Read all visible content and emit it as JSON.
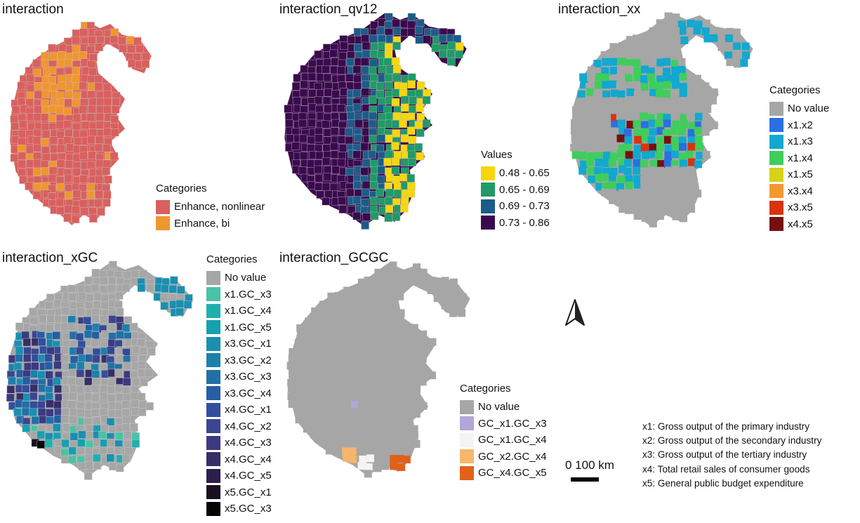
{
  "panels": [
    {
      "id": "interaction",
      "title": "interaction",
      "legend_title": "Categories",
      "legend": [
        {
          "label": "Enhance, nonlinear",
          "color": "#d9605e"
        },
        {
          "label": "Enhance, bi",
          "color": "#f0962e"
        }
      ]
    },
    {
      "id": "interaction_qv12",
      "title": "interaction_qv12",
      "legend_title": "Values",
      "legend": [
        {
          "label": "0.48 - 0.65",
          "color": "#f6d60f"
        },
        {
          "label": "0.65 - 0.69",
          "color": "#1f9a68"
        },
        {
          "label": "0.69 - 0.73",
          "color": "#1c5c8a"
        },
        {
          "label": "0.73 - 0.86",
          "color": "#3a0a4e"
        }
      ]
    },
    {
      "id": "interaction_xx",
      "title": "interaction_xx",
      "legend_title": "Categories",
      "legend": [
        {
          "label": "No value",
          "color": "#a6a6a6"
        },
        {
          "label": "x1.x2",
          "color": "#2b6fe0"
        },
        {
          "label": "x1.x3",
          "color": "#12a8cf"
        },
        {
          "label": "x1.x4",
          "color": "#3fcd5c"
        },
        {
          "label": "x1.x5",
          "color": "#d7d118"
        },
        {
          "label": "x3.x4",
          "color": "#f2992f"
        },
        {
          "label": "x3.x5",
          "color": "#d9330d"
        },
        {
          "label": "x4.x5",
          "color": "#770f0f"
        }
      ]
    },
    {
      "id": "interaction_xGC",
      "title": "interaction_xGC",
      "legend_title": "Categories",
      "legend": [
        {
          "label": "No value",
          "color": "#a6a6a6"
        },
        {
          "label": "x1.GC_x3",
          "color": "#48c3a5"
        },
        {
          "label": "x1.GC_x4",
          "color": "#1fb0ad"
        },
        {
          "label": "x1.GC_x5",
          "color": "#16a0b0"
        },
        {
          "label": "x3.GC_x1",
          "color": "#1a8fb0"
        },
        {
          "label": "x3.GC_x2",
          "color": "#1c80ab"
        },
        {
          "label": "x3.GC_x3",
          "color": "#2170a7"
        },
        {
          "label": "x3.GC_x4",
          "color": "#255ea3"
        },
        {
          "label": "x4.GC_x1",
          "color": "#314f9e"
        },
        {
          "label": "x4.GC_x2",
          "color": "#3b4692"
        },
        {
          "label": "x4.GC_x3",
          "color": "#3b3a80"
        },
        {
          "label": "x4.GC_x4",
          "color": "#372e68"
        },
        {
          "label": "x4.GC_x5",
          "color": "#2c1f4d"
        },
        {
          "label": "x5.GC_x1",
          "color": "#1a1020"
        },
        {
          "label": "x5.GC_x3",
          "color": "#050505"
        }
      ]
    },
    {
      "id": "interaction_GCGC",
      "title": "interaction_GCGC",
      "legend_title": "Categories",
      "legend": [
        {
          "label": "No value",
          "color": "#a6a6a6"
        },
        {
          "label": "GC_x1.GC_x3",
          "color": "#b0a7d6"
        },
        {
          "label": "GC_x1.GC_x4",
          "color": "#f4f4f4"
        },
        {
          "label": "GC_x2.GC_x4",
          "color": "#f6b66b"
        },
        {
          "label": "GC_x4.GC_x5",
          "color": "#e0621a"
        }
      ]
    }
  ],
  "scale": {
    "label": "0 100 km"
  },
  "north_arrow": {
    "icon": "north-arrow-icon"
  },
  "notes": [
    "x1: Gross output of the primary industry",
    "x2: Gross output of the secondary industry",
    "x3: Gross output of the tertiary industry",
    "x4: Total retail sales of consumer goods",
    "x5: General public budget expenditure"
  ]
}
